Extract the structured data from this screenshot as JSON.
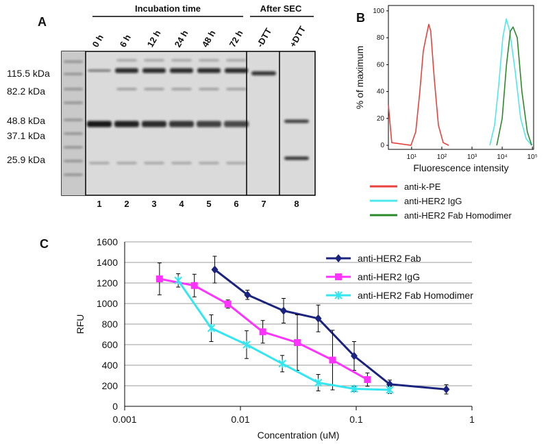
{
  "panel_a": {
    "label": "A",
    "group_labels": [
      "Incubation time",
      "After SEC"
    ],
    "lane_labels": [
      "0 h",
      "6 h",
      "12 h",
      "24 h",
      "48 h",
      "72 h",
      "-DTT",
      "+DTT"
    ],
    "lane_numbers": [
      "1",
      "2",
      "3",
      "4",
      "5",
      "6",
      "7",
      "8"
    ],
    "markers": [
      "115.5 kDa",
      "82.2 kDa",
      "48.8 kDa",
      "37.1 kDa",
      "25.9 kDa"
    ]
  },
  "chart_data": [
    {
      "type": "line",
      "label": "B",
      "ylabel": "% of maximum",
      "xlabel": "Fluorescence intensity",
      "xscale": "log",
      "xlim": [
        1.7,
        110000
      ],
      "ylim": [
        -3,
        104
      ],
      "xticks": [
        {
          "value": 10,
          "label": "10¹"
        },
        {
          "value": 100,
          "label": "10²"
        },
        {
          "value": 1000,
          "label": "10³"
        },
        {
          "value": 10000,
          "label": "10⁴"
        },
        {
          "value": 100000,
          "label": "10⁵"
        }
      ],
      "yticks": [
        0,
        20,
        40,
        60,
        80,
        100
      ],
      "grid": false,
      "legend": "below",
      "series": [
        {
          "name": "anti-k-PE",
          "color": "#e8413c",
          "x": [
            1.7,
            2.2,
            9.5,
            13.7,
            18.7,
            24.3,
            28.5,
            37,
            43,
            56,
            77,
            111,
            169
          ],
          "values": [
            30,
            2,
            0,
            10,
            40,
            70,
            78,
            90,
            85,
            50,
            15,
            2,
            0
          ]
        },
        {
          "name": "anti-HER2 IgG",
          "color": "#4de8ee",
          "x": [
            3900,
            5600,
            7700,
            10500,
            13700,
            17800,
            27000,
            41000,
            62000,
            95000
          ],
          "values": [
            0,
            15,
            45,
            80,
            94,
            85,
            55,
            20,
            5,
            0
          ]
        },
        {
          "name": "anti-HER2 Fab Homodimer",
          "color": "#2a8a2a",
          "x": [
            6600,
            10000,
            13900,
            18700,
            23000,
            31500,
            45000,
            68000,
            95000
          ],
          "values": [
            0,
            20,
            60,
            85,
            88,
            80,
            40,
            10,
            0
          ]
        }
      ]
    },
    {
      "type": "line",
      "label": "C",
      "ylabel": "RFU",
      "xlabel": "Concentration (uM)",
      "xscale": "log",
      "xlim": [
        0.001,
        1
      ],
      "ylim": [
        0,
        1600
      ],
      "xticks": [
        0.001,
        0.01,
        0.1,
        1
      ],
      "yticks": [
        0,
        200,
        400,
        600,
        800,
        1000,
        1200,
        1400,
        1600
      ],
      "grid": true,
      "legend": "upper right",
      "series": [
        {
          "name": "anti-HER2 Fab",
          "color": "#1a237e",
          "marker": "diamond",
          "x": [
            0.006,
            0.0115,
            0.0236,
            0.047,
            0.096,
            0.195,
            0.6
          ],
          "values": [
            1330,
            1085,
            930,
            855,
            490,
            215,
            165
          ],
          "errors": [
            130,
            45,
            120,
            130,
            140,
            40,
            45
          ]
        },
        {
          "name": "anti-HER2 IgG",
          "color": "#ff33ff",
          "marker": "square",
          "x": [
            0.002,
            0.004,
            0.0078,
            0.0156,
            0.031,
            0.0625,
            0.125
          ],
          "values": [
            1240,
            1175,
            995,
            725,
            620,
            450,
            260
          ],
          "errors": [
            155,
            110,
            40,
            110,
            270,
            290,
            65
          ]
        },
        {
          "name": "anti-HER2 Fab Homodimer",
          "color": "#33e6f0",
          "marker": "asterisk",
          "x": [
            0.0029,
            0.0056,
            0.0113,
            0.023,
            0.047,
            0.096,
            0.195
          ],
          "values": [
            1225,
            760,
            600,
            415,
            230,
            170,
            160
          ],
          "errors": [
            65,
            130,
            135,
            80,
            80,
            25,
            35
          ]
        }
      ]
    }
  ]
}
